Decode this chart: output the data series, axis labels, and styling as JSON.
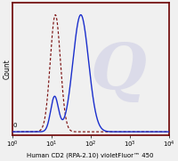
{
  "xlabel": "Human CD2 (RPA-2.10) violetFluor™ 450",
  "ylabel": "Count",
  "xlim_log": [
    0,
    4
  ],
  "ylim": [
    -0.03,
    1.1
  ],
  "background_color": "#f0f0f0",
  "plot_bg_color": "#f0f0f0",
  "border_color": "#6b0000",
  "solid_line_color": "#1a2ecc",
  "dashed_line_color": "#7b1010",
  "watermark_color": "#d8d8e8",
  "watermark_alpha": 0.85,
  "dashed_peak_log": 1.1,
  "dashed_sigma": 0.13,
  "solid_peak_log": 1.75,
  "solid_sigma": 0.2,
  "solid_low_peak_log": 1.08,
  "solid_low_sigma": 0.1,
  "solid_low_amp": 0.3,
  "xlabel_fontsize": 5.0,
  "ylabel_fontsize": 5.5,
  "tick_fontsize": 5.0
}
